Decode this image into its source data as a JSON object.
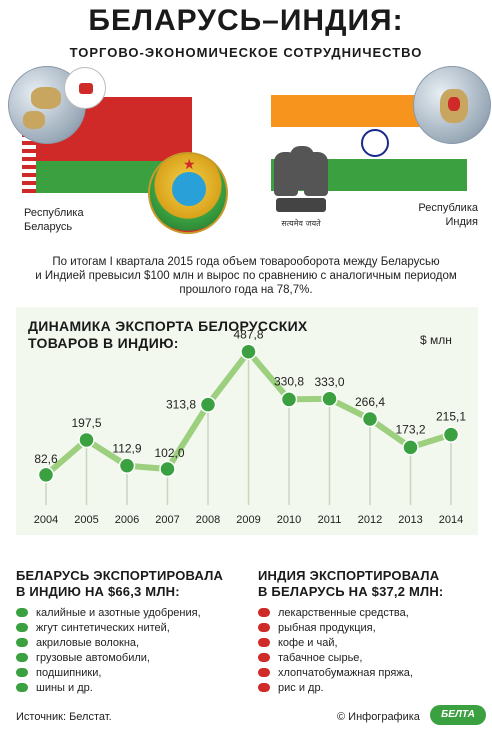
{
  "header": {
    "title": "БЕЛАРУСЬ–ИНДИЯ:",
    "subtitle": "ТОРГОВО-ЭКОНОМИЧЕСКОЕ СОТРУДНИЧЕСТВО"
  },
  "countries": {
    "belarus_line1": "Республика",
    "belarus_line2": "Беларусь",
    "india_line1": "Республика",
    "india_line2": "Индия",
    "india_motto": "सत्यमेव जयते"
  },
  "intro": {
    "line1": "По итогам I квартала 2015 года объем товарооборота между Беларусью",
    "line2": "и Индией превысил $100 млн и вырос по сравнению с аналогичным периодом",
    "line3": "прошлого года на 78,7%."
  },
  "chart_data": {
    "type": "line",
    "title_line1": "ДИНАМИКА ЭКСПОРТА БЕЛОРУССКИХ",
    "title_line2": "ТОВАРОВ В ИНДИЮ:",
    "unit": "$ млн",
    "categories": [
      "2004",
      "2005",
      "2006",
      "2007",
      "2008",
      "2009",
      "2010",
      "2011",
      "2012",
      "2013",
      "2014"
    ],
    "values": [
      82.6,
      197.5,
      112.9,
      102.0,
      313.8,
      487.8,
      330.8,
      333.0,
      266.4,
      173.2,
      215.1
    ],
    "labels": [
      "82,6",
      "197,5",
      "112,9",
      "102,0",
      "313,8",
      "487,8",
      "330,8",
      "333,0",
      "266,4",
      "173,2",
      "215,1"
    ],
    "ylim": [
      0,
      500
    ],
    "grid": false,
    "colors": {
      "line": "#9ccf7e",
      "marker": "#3aa040",
      "drop": "#c8d6c0"
    }
  },
  "exports_by": {
    "title_line1": "БЕЛАРУСЬ ЭКСПОРТИРОВАЛА",
    "title_line2": "В ИНДИЮ НА $66,3 МЛН:",
    "items": [
      "калийные и азотные удобрения,",
      "жгут синтетических нитей,",
      "акриловые волокна,",
      "грузовые автомобили,",
      "подшипники,",
      "шины и др."
    ],
    "bullet_color": "#3aa040"
  },
  "exports_in": {
    "title_line1": "ИНДИЯ ЭКСПОРТИРОВАЛА",
    "title_line2": "В БЕЛАРУСЬ НА $37,2 МЛН:",
    "items": [
      "лекарственные средства,",
      "рыбная продукция,",
      "кофе и чай,",
      "табачное сырье,",
      "хлопчатобумажная пряжа,",
      "рис и др."
    ],
    "bullet_color": "#cf2a27"
  },
  "footer": {
    "source": "Источник: Белстат.",
    "copyright": "© Инфографика",
    "logo": "БЕЛТА"
  }
}
